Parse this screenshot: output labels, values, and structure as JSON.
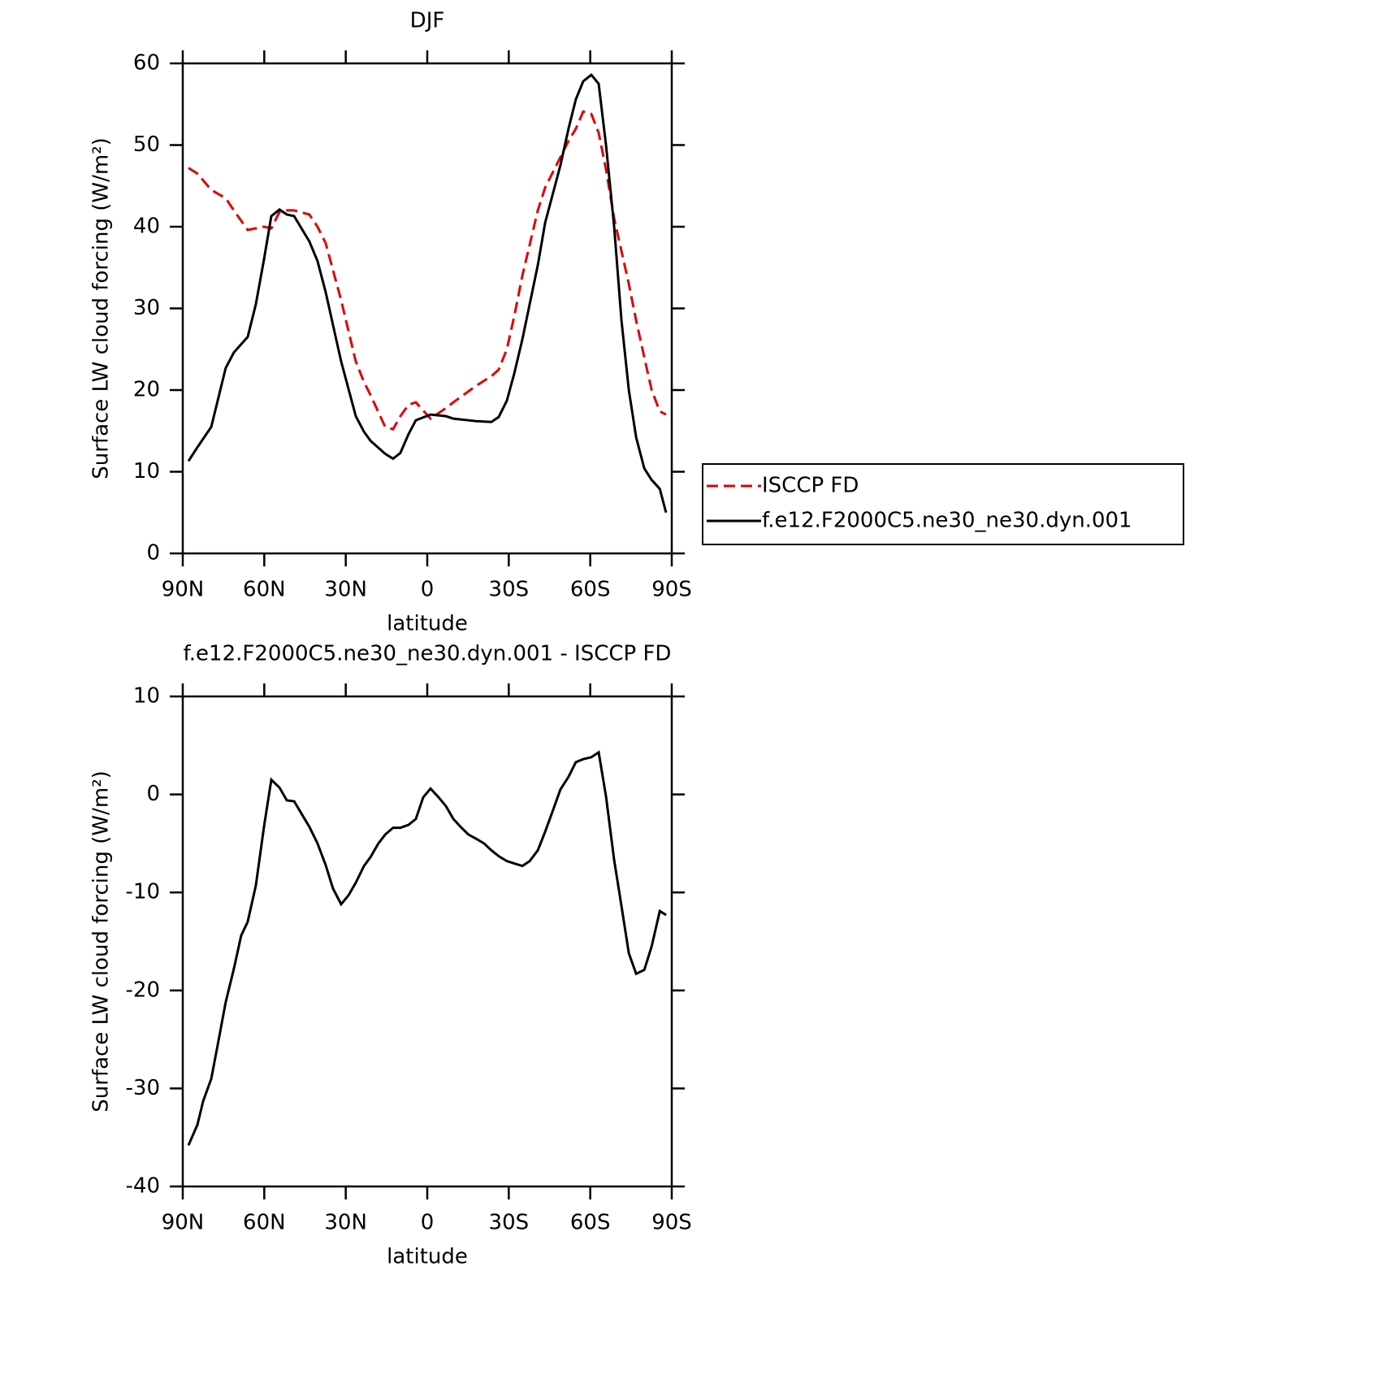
{
  "chart_data": [
    {
      "type": "line",
      "title": "DJF",
      "xlabel": "latitude",
      "ylabel": "Surface LW cloud forcing (W/m²)",
      "x": [
        87.9,
        84.6,
        79.5,
        74.2,
        71.2,
        66.1,
        63.1,
        60.1,
        57.4,
        54.4,
        51.7,
        49,
        43.4,
        40.4,
        37.4,
        31.7,
        26.3,
        23.3,
        20.9,
        15.5,
        12.6,
        9.9,
        6.9,
        4.2,
        -1.2,
        -6.9,
        -9.6,
        -17.9,
        -23.6,
        -26.3,
        -29.3,
        -32,
        -35,
        -40.7,
        -43.4,
        -49,
        -52,
        -54.7,
        -57.4,
        -60.4,
        -63.1,
        -65.8,
        -68.8,
        -71.5,
        -74.2,
        -76.9,
        -79.9,
        -82.6,
        -85.6,
        -87.9
      ],
      "series": [
        {
          "name": "ISCCP FD",
          "color": "#e00000",
          "dash": true,
          "values": [
            47.2,
            46.5,
            44.5,
            43.5,
            42,
            39.6,
            39.8,
            40,
            39.8,
            41.8,
            42,
            42,
            41.5,
            40,
            38,
            31,
            23.5,
            21,
            19.4,
            15.5,
            15.2,
            16.8,
            18.2,
            18.5,
            16.5,
            17.8,
            18.5,
            20.5,
            21.7,
            22.5,
            25,
            29,
            34,
            42,
            44.8,
            48.5,
            50.5,
            52,
            54.1,
            53.8,
            51.5,
            47,
            41,
            37,
            33,
            28.5,
            24,
            20,
            17.4,
            17
          ]
        },
        {
          "name": "f.e12.F2000C5.ne30_ne30.dyn.001",
          "color": "#000000",
          "dash": false,
          "values": [
            11.3,
            13,
            15.5,
            22.7,
            24.6,
            26.5,
            30.5,
            36,
            41.3,
            42.1,
            41.5,
            41.3,
            38.2,
            35.8,
            32,
            23.5,
            16.8,
            14.9,
            13.8,
            12.2,
            11.6,
            12.3,
            14.6,
            16.3,
            17,
            16.8,
            16.5,
            16.2,
            16.1,
            16.7,
            18.7,
            22,
            26.2,
            35.3,
            40.5,
            47.5,
            52,
            55.6,
            57.8,
            58.6,
            57.5,
            50,
            40,
            28.5,
            20,
            14.2,
            10.4,
            9,
            7.9,
            5
          ]
        }
      ],
      "xlim": [
        90,
        -90
      ],
      "xticks": [
        {
          "value": 90,
          "label": "90N"
        },
        {
          "value": 60,
          "label": "60N"
        },
        {
          "value": 30,
          "label": "30N"
        },
        0,
        {
          "value": -30,
          "label": "30S"
        },
        {
          "value": -60,
          "label": "60S"
        },
        {
          "value": -90,
          "label": "90S"
        }
      ],
      "ylim": [
        0,
        60
      ],
      "yticks": [
        0,
        10,
        20,
        30,
        40,
        50,
        60
      ],
      "legend": "right"
    },
    {
      "type": "line",
      "title": "f.e12.F2000C5.ne30_ne30.dyn.001 - ISCCP FD",
      "xlabel": "latitude",
      "ylabel": "Surface LW cloud forcing (W/m²)",
      "x": [
        87.9,
        84.6,
        82.5,
        79.5,
        77.1,
        74.2,
        71.2,
        68.5,
        66.1,
        63.1,
        60.1,
        57.4,
        54.4,
        51.7,
        49,
        46,
        43.4,
        40.4,
        37.4,
        34.7,
        31.7,
        29,
        26.3,
        23.3,
        20.9,
        18,
        15.5,
        12.6,
        9.9,
        6.9,
        4.2,
        1.5,
        -1.2,
        -4.2,
        -6.9,
        -9.6,
        -12.6,
        -15.2,
        -17.9,
        -20.9,
        -23.6,
        -26.3,
        -29.3,
        -35,
        -37.7,
        -40.7,
        -43.4,
        -46.3,
        -49,
        -52,
        -54.7,
        -57.4,
        -60.4,
        -63.1,
        -65.8,
        -68.8,
        -71.5,
        -74.2,
        -76.9,
        -79.9,
        -82.6,
        -85.6,
        -87.9
      ],
      "series": [
        {
          "name": null,
          "color": "#000000",
          "dash": false,
          "values": [
            -35.8,
            -33.7,
            -31.3,
            -29,
            -25.5,
            -21.2,
            -17.8,
            -14.4,
            -13,
            -9.3,
            -3.3,
            1.5,
            0.7,
            -0.6,
            -0.7,
            -2.1,
            -3.3,
            -5,
            -7.2,
            -9.6,
            -11.2,
            -10.3,
            -9,
            -7.3,
            -6.4,
            -5,
            -4.1,
            -3.4,
            -3.4,
            -3.1,
            -2.5,
            -0.3,
            0.6,
            -0.3,
            -1.2,
            -2.5,
            -3.4,
            -4.1,
            -4.5,
            -5,
            -5.7,
            -6.3,
            -6.8,
            -7.3,
            -6.8,
            -5.7,
            -3.8,
            -1.6,
            0.5,
            1.8,
            3.3,
            3.6,
            3.8,
            4.3,
            -0.2,
            -6.7,
            -11.4,
            -16.2,
            -18.3,
            -17.9,
            -15.5,
            -11.9,
            -12.3
          ]
        }
      ],
      "xlim": [
        90,
        -90
      ],
      "xticks": [
        {
          "value": 90,
          "label": "90N"
        },
        {
          "value": 60,
          "label": "60N"
        },
        {
          "value": 30,
          "label": "30N"
        },
        0,
        {
          "value": -30,
          "label": "30S"
        },
        {
          "value": -60,
          "label": "60S"
        },
        {
          "value": -90,
          "label": "90S"
        }
      ],
      "ylim": [
        -40,
        10
      ],
      "yticks": [
        -40,
        -30,
        -20,
        -10,
        0,
        10
      ]
    }
  ]
}
